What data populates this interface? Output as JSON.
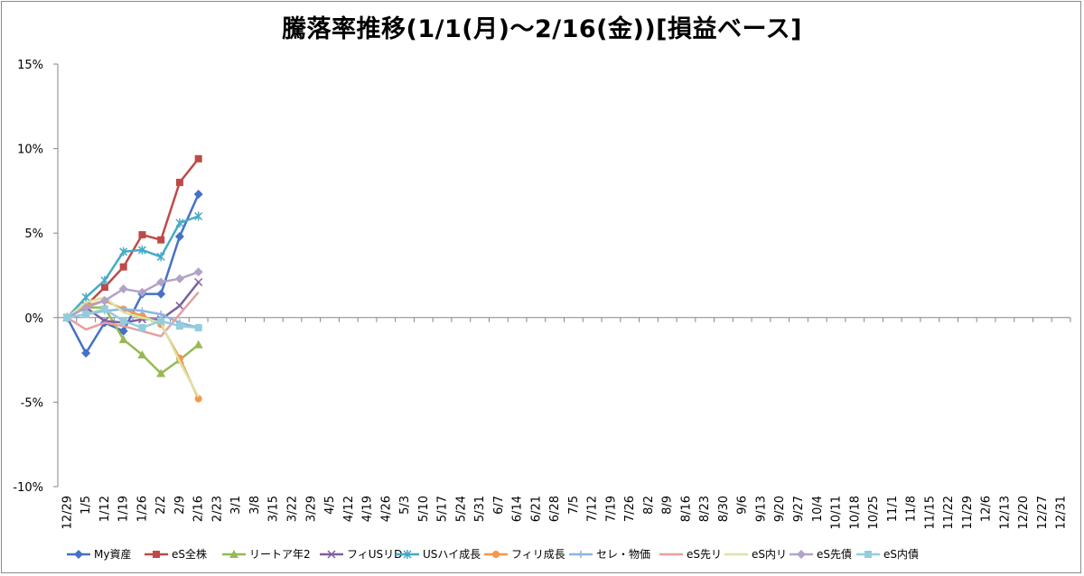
{
  "chart_data": {
    "type": "line",
    "title": "騰落率推移(1/1(月)～2/16(金))[損益ベース]",
    "xlabel": "",
    "ylabel": "",
    "ylim": [
      -10,
      15
    ],
    "y_ticks": [
      "15%",
      "10%",
      "5%",
      "0%",
      "-5%",
      "-10%"
    ],
    "y_tick_values": [
      15,
      10,
      5,
      0,
      -5,
      -10
    ],
    "x_ticks": [
      "12/29",
      "1/5",
      "1/12",
      "1/19",
      "1/26",
      "2/2",
      "2/9",
      "2/16",
      "2/23",
      "3/1",
      "3/8",
      "3/15",
      "3/22",
      "3/29",
      "4/5",
      "4/12",
      "4/19",
      "4/26",
      "5/3",
      "5/10",
      "5/17",
      "5/24",
      "5/31",
      "6/7",
      "6/14",
      "6/21",
      "6/28",
      "7/5",
      "7/12",
      "7/19",
      "7/26",
      "8/2",
      "8/9",
      "8/16",
      "8/23",
      "8/30",
      "9/6",
      "9/13",
      "9/20",
      "9/27",
      "10/4",
      "10/11",
      "10/18",
      "10/25",
      "11/1",
      "11/8",
      "11/15",
      "11/22",
      "11/29",
      "12/6",
      "12/13",
      "12/20",
      "12/27",
      "12/31"
    ],
    "grid": "horizontal-zero-line",
    "legend": "bottom",
    "series": [
      {
        "name": "My資産",
        "color": "#4472c4",
        "marker": "diamond",
        "values": [
          0,
          -2.1,
          -0.3,
          -0.8,
          1.4,
          1.4,
          4.8,
          7.3
        ]
      },
      {
        "name": "eS全株",
        "color": "#be4b48",
        "marker": "square",
        "values": [
          0,
          0.7,
          1.8,
          3.0,
          4.9,
          4.6,
          8.0,
          9.4
        ]
      },
      {
        "name": "リートア年2",
        "color": "#98b954",
        "marker": "triangle",
        "values": [
          0,
          0.6,
          0.6,
          -1.3,
          -2.2,
          -3.3,
          -2.5,
          -1.6
        ]
      },
      {
        "name": "フィUSリD",
        "color": "#7d60a0",
        "marker": "x",
        "values": [
          0,
          0.6,
          -0.2,
          -0.3,
          -0.1,
          -0.1,
          0.7,
          2.1
        ]
      },
      {
        "name": "USハイ成長",
        "color": "#46aac5",
        "marker": "star",
        "values": [
          0,
          1.2,
          2.2,
          3.9,
          4.0,
          3.6,
          5.6,
          6.0
        ]
      },
      {
        "name": "フィリ成長",
        "color": "#f79646",
        "marker": "circle",
        "values": [
          0,
          0.7,
          1.0,
          0.5,
          0.1,
          -0.4,
          -2.4,
          -4.8
        ]
      },
      {
        "name": "セレ・物価",
        "color": "#8eb4e3",
        "marker": "plus",
        "values": [
          0,
          0.2,
          0.4,
          0.5,
          0.4,
          0.2,
          -0.3,
          -0.6
        ]
      },
      {
        "name": "eS先リ",
        "color": "#e6a0a0",
        "marker": "none",
        "values": [
          0,
          -0.7,
          -0.3,
          -0.5,
          -0.8,
          -1.1,
          0.2,
          1.5
        ]
      },
      {
        "name": "eS内リ",
        "color": "#d7e4a9",
        "marker": "none",
        "values": [
          0,
          0.9,
          1.2,
          0.3,
          0.0,
          -0.3,
          -2.6,
          -4.7
        ]
      },
      {
        "name": "eS先債",
        "color": "#b3a2c7",
        "marker": "diamond",
        "values": [
          0,
          0.6,
          1.0,
          1.7,
          1.5,
          2.1,
          2.3,
          2.7
        ]
      },
      {
        "name": "eS内債",
        "color": "#93cddd",
        "marker": "square",
        "values": [
          0,
          0.2,
          0.5,
          -0.2,
          -0.6,
          -0.2,
          -0.5,
          -0.6
        ]
      }
    ]
  }
}
